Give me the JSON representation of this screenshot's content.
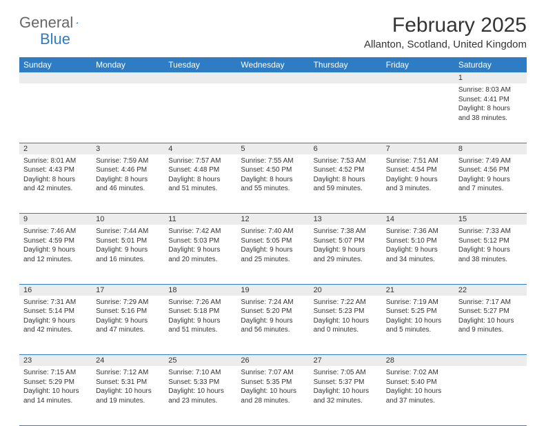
{
  "logo": {
    "text1": "General",
    "text2": "Blue"
  },
  "title": "February 2025",
  "location": "Allanton, Scotland, United Kingdom",
  "colors": {
    "header_bg": "#2e7cc4",
    "header_fg": "#ffffff",
    "daynum_bg": "#ececec",
    "border": "#2e7cc4"
  },
  "day_headers": [
    "Sunday",
    "Monday",
    "Tuesday",
    "Wednesday",
    "Thursday",
    "Friday",
    "Saturday"
  ],
  "weeks": [
    {
      "nums": [
        "",
        "",
        "",
        "",
        "",
        "",
        "1"
      ],
      "cells": [
        null,
        null,
        null,
        null,
        null,
        null,
        {
          "sunrise": "8:03 AM",
          "sunset": "4:41 PM",
          "daylight": "8 hours and 38 minutes."
        }
      ]
    },
    {
      "nums": [
        "2",
        "3",
        "4",
        "5",
        "6",
        "7",
        "8"
      ],
      "cells": [
        {
          "sunrise": "8:01 AM",
          "sunset": "4:43 PM",
          "daylight": "8 hours and 42 minutes."
        },
        {
          "sunrise": "7:59 AM",
          "sunset": "4:46 PM",
          "daylight": "8 hours and 46 minutes."
        },
        {
          "sunrise": "7:57 AM",
          "sunset": "4:48 PM",
          "daylight": "8 hours and 51 minutes."
        },
        {
          "sunrise": "7:55 AM",
          "sunset": "4:50 PM",
          "daylight": "8 hours and 55 minutes."
        },
        {
          "sunrise": "7:53 AM",
          "sunset": "4:52 PM",
          "daylight": "8 hours and 59 minutes."
        },
        {
          "sunrise": "7:51 AM",
          "sunset": "4:54 PM",
          "daylight": "9 hours and 3 minutes."
        },
        {
          "sunrise": "7:49 AM",
          "sunset": "4:56 PM",
          "daylight": "9 hours and 7 minutes."
        }
      ]
    },
    {
      "nums": [
        "9",
        "10",
        "11",
        "12",
        "13",
        "14",
        "15"
      ],
      "cells": [
        {
          "sunrise": "7:46 AM",
          "sunset": "4:59 PM",
          "daylight": "9 hours and 12 minutes."
        },
        {
          "sunrise": "7:44 AM",
          "sunset": "5:01 PM",
          "daylight": "9 hours and 16 minutes."
        },
        {
          "sunrise": "7:42 AM",
          "sunset": "5:03 PM",
          "daylight": "9 hours and 20 minutes."
        },
        {
          "sunrise": "7:40 AM",
          "sunset": "5:05 PM",
          "daylight": "9 hours and 25 minutes."
        },
        {
          "sunrise": "7:38 AM",
          "sunset": "5:07 PM",
          "daylight": "9 hours and 29 minutes."
        },
        {
          "sunrise": "7:36 AM",
          "sunset": "5:10 PM",
          "daylight": "9 hours and 34 minutes."
        },
        {
          "sunrise": "7:33 AM",
          "sunset": "5:12 PM",
          "daylight": "9 hours and 38 minutes."
        }
      ]
    },
    {
      "nums": [
        "16",
        "17",
        "18",
        "19",
        "20",
        "21",
        "22"
      ],
      "cells": [
        {
          "sunrise": "7:31 AM",
          "sunset": "5:14 PM",
          "daylight": "9 hours and 42 minutes."
        },
        {
          "sunrise": "7:29 AM",
          "sunset": "5:16 PM",
          "daylight": "9 hours and 47 minutes."
        },
        {
          "sunrise": "7:26 AM",
          "sunset": "5:18 PM",
          "daylight": "9 hours and 51 minutes."
        },
        {
          "sunrise": "7:24 AM",
          "sunset": "5:20 PM",
          "daylight": "9 hours and 56 minutes."
        },
        {
          "sunrise": "7:22 AM",
          "sunset": "5:23 PM",
          "daylight": "10 hours and 0 minutes."
        },
        {
          "sunrise": "7:19 AM",
          "sunset": "5:25 PM",
          "daylight": "10 hours and 5 minutes."
        },
        {
          "sunrise": "7:17 AM",
          "sunset": "5:27 PM",
          "daylight": "10 hours and 9 minutes."
        }
      ]
    },
    {
      "nums": [
        "23",
        "24",
        "25",
        "26",
        "27",
        "28",
        ""
      ],
      "cells": [
        {
          "sunrise": "7:15 AM",
          "sunset": "5:29 PM",
          "daylight": "10 hours and 14 minutes."
        },
        {
          "sunrise": "7:12 AM",
          "sunset": "5:31 PM",
          "daylight": "10 hours and 19 minutes."
        },
        {
          "sunrise": "7:10 AM",
          "sunset": "5:33 PM",
          "daylight": "10 hours and 23 minutes."
        },
        {
          "sunrise": "7:07 AM",
          "sunset": "5:35 PM",
          "daylight": "10 hours and 28 minutes."
        },
        {
          "sunrise": "7:05 AM",
          "sunset": "5:37 PM",
          "daylight": "10 hours and 32 minutes."
        },
        {
          "sunrise": "7:02 AM",
          "sunset": "5:40 PM",
          "daylight": "10 hours and 37 minutes."
        },
        null
      ]
    }
  ]
}
